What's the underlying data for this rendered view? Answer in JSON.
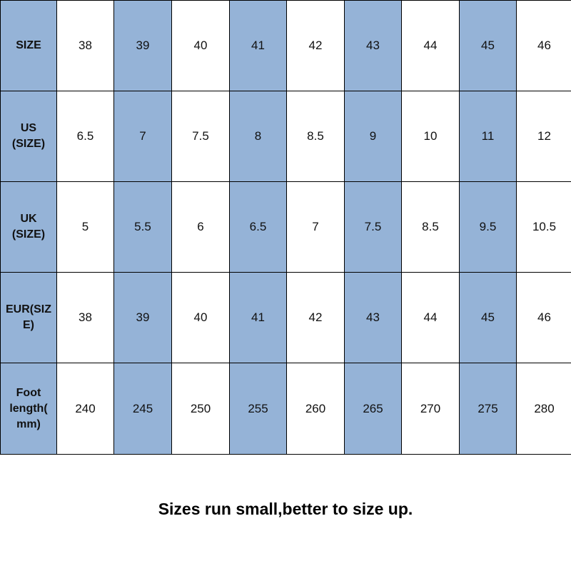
{
  "table": {
    "rows": [
      {
        "header": "SIZE",
        "values": [
          38,
          39,
          40,
          41,
          42,
          43,
          44,
          45,
          46
        ]
      },
      {
        "header": "US\n(SIZE)",
        "values": [
          6.5,
          7,
          7.5,
          8,
          8.5,
          9,
          10,
          11,
          12
        ]
      },
      {
        "header": "UK\n(SIZE)",
        "values": [
          5,
          5.5,
          6,
          6.5,
          7,
          7.5,
          8.5,
          9.5,
          10.5
        ]
      },
      {
        "header": "EUR(SIZ\nE)",
        "values": [
          38,
          39,
          40,
          41,
          42,
          43,
          44,
          45,
          46
        ]
      },
      {
        "header": "Foot\nlength(\nmm)",
        "values": [
          240,
          245,
          250,
          255,
          260,
          265,
          270,
          275,
          280
        ]
      }
    ]
  },
  "footer": "Sizes run small,better to size up."
}
